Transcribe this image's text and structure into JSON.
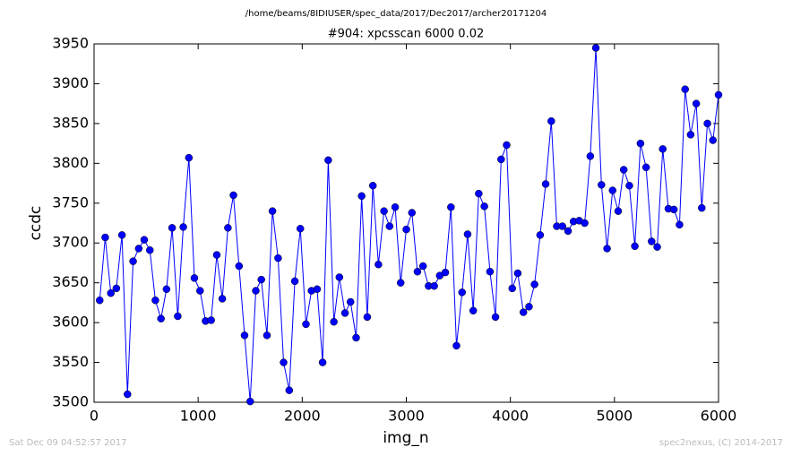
{
  "chart_data": {
    "type": "line",
    "header": "/home/beams/8IDIUSER/spec_data/2017/Dec2017/archer20171204",
    "title": "#904: xpcsscan 6000 0.02",
    "x_label": "img_n",
    "y_label": "ccdc",
    "footer_left": "Sat Dec 09 04:52:57 2017",
    "footer_right": "spec2nexus, (C) 2014-2017",
    "xlim": [
      0,
      6000
    ],
    "xticks": [
      0,
      1000,
      2000,
      3000,
      4000,
      5000,
      6000
    ],
    "ylim": [
      3500,
      3950
    ],
    "yticks": [
      3500,
      3550,
      3600,
      3650,
      3700,
      3750,
      3800,
      3850,
      3900,
      3950
    ],
    "x": [
      54,
      107,
      161,
      214,
      268,
      321,
      375,
      429,
      482,
      536,
      589,
      643,
      696,
      750,
      804,
      857,
      911,
      964,
      1018,
      1071,
      1125,
      1179,
      1232,
      1286,
      1339,
      1393,
      1446,
      1500,
      1554,
      1607,
      1661,
      1714,
      1768,
      1821,
      1875,
      1929,
      1982,
      2036,
      2089,
      2143,
      2196,
      2250,
      2304,
      2357,
      2411,
      2464,
      2518,
      2571,
      2625,
      2679,
      2732,
      2786,
      2839,
      2893,
      2946,
      3000,
      3054,
      3107,
      3161,
      3214,
      3268,
      3321,
      3375,
      3429,
      3482,
      3536,
      3589,
      3643,
      3696,
      3750,
      3804,
      3857,
      3911,
      3964,
      4018,
      4071,
      4125,
      4179,
      4232,
      4286,
      4339,
      4393,
      4446,
      4500,
      4554,
      4607,
      4661,
      4714,
      4768,
      4821,
      4875,
      4929,
      4982,
      5036,
      5089,
      5143,
      5196,
      5250,
      5304,
      5357,
      5411,
      5464,
      5518,
      5571,
      5625,
      5679,
      5732,
      5786,
      5839,
      5893,
      5946,
      6000
    ],
    "series": [
      {
        "color": "#0000ff",
        "values": [
          3628,
          3707,
          3637,
          3643,
          3710,
          3510,
          3677,
          3693,
          3704,
          3691,
          3628,
          3605,
          3642,
          3719,
          3608,
          3720,
          3807,
          3656,
          3640,
          3602,
          3603,
          3685,
          3630,
          3719,
          3760,
          3671,
          3584,
          3501,
          3640,
          3654,
          3584,
          3740,
          3681,
          3550,
          3515,
          3652,
          3718,
          3598,
          3640,
          3642,
          3550,
          3804,
          3601,
          3657,
          3612,
          3626,
          3581,
          3759,
          3607,
          3772,
          3673,
          3740,
          3721,
          3745,
          3650,
          3717,
          3738,
          3664,
          3671,
          3646,
          3646,
          3659,
          3663,
          3745,
          3571,
          3638,
          3711,
          3615,
          3762,
          3746,
          3664,
          3607,
          3805,
          3823,
          3643,
          3662,
          3613,
          3620,
          3648,
          3710,
          3774,
          3853,
          3721,
          3721,
          3715,
          3727,
          3728,
          3725,
          3809,
          3945,
          3773,
          3693,
          3766,
          3740,
          3792,
          3772,
          3696,
          3825,
          3795,
          3702,
          3695,
          3818,
          3743,
          3742,
          3723,
          3893,
          3836,
          3875,
          3744,
          3850,
          3829,
          3886
        ]
      }
    ]
  }
}
